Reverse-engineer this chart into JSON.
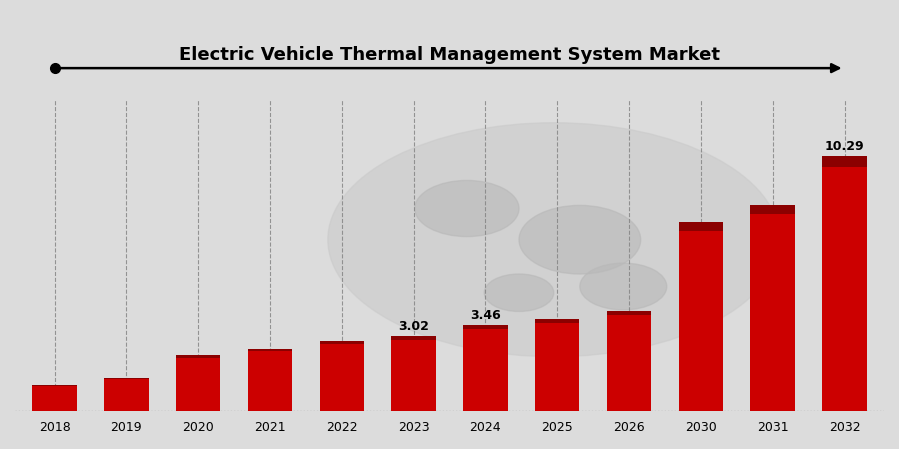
{
  "title": "Electric Vehicle Thermal Management System Market",
  "years": [
    2018,
    2019,
    2020,
    2021,
    2022,
    2023,
    2024,
    2025,
    2026,
    2030,
    2031,
    2032
  ],
  "values": [
    1.05,
    1.35,
    2.25,
    2.52,
    2.82,
    3.02,
    3.46,
    3.72,
    4.05,
    7.6,
    8.3,
    10.29
  ],
  "bar_color": "#CC0000",
  "bar_top_color": "#8B0000",
  "background_color": "#DCDCDC",
  "labeled_bars": {
    "2023": "3.02",
    "2024": "3.46",
    "2032": "10.29"
  },
  "title_fontsize": 13,
  "ylabel_fontsize": 10
}
